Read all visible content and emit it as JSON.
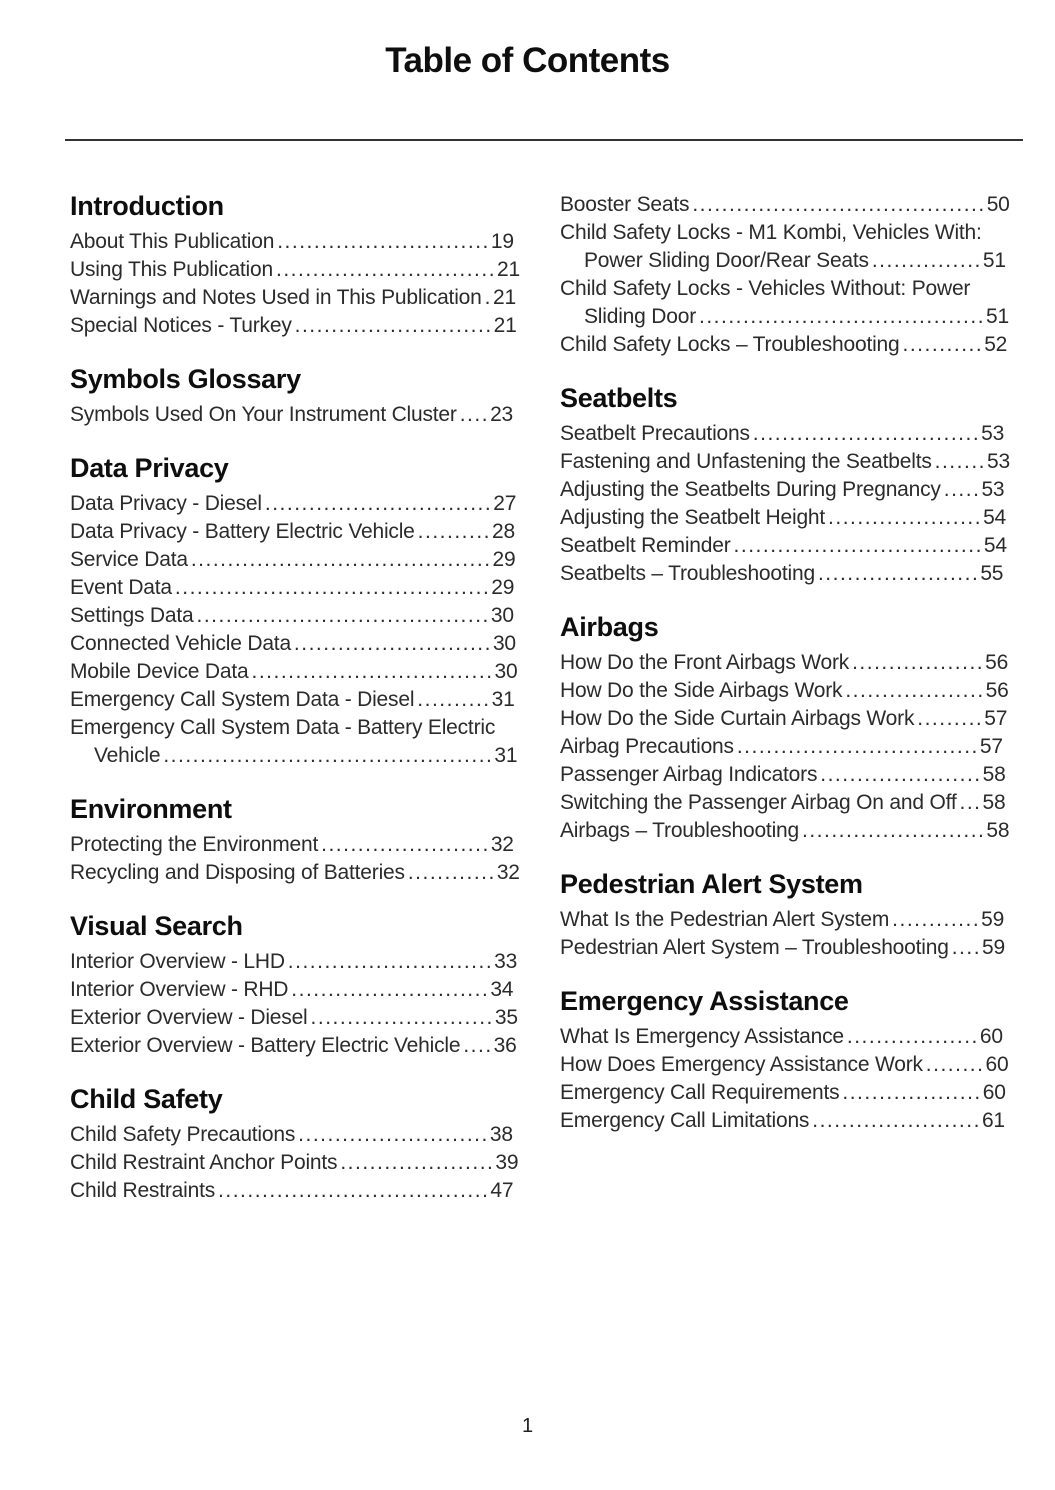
{
  "page": {
    "title": "Table of Contents",
    "page_number": "1"
  },
  "columns": [
    {
      "sections": [
        {
          "heading": "Introduction",
          "entries": [
            {
              "title": "About This Publication",
              "page": "19"
            },
            {
              "title": "Using This Publication",
              "page": "21"
            },
            {
              "title": "Warnings and Notes Used in This Publication",
              "page": "21"
            },
            {
              "title": "Special Notices - Turkey",
              "page": "21"
            }
          ]
        },
        {
          "heading": "Symbols Glossary",
          "entries": [
            {
              "title": "Symbols Used On Your Instrument Cluster",
              "page": "23"
            }
          ]
        },
        {
          "heading": "Data Privacy",
          "entries": [
            {
              "title": "Data Privacy - Diesel",
              "page": "27"
            },
            {
              "title": "Data Privacy - Battery Electric Vehicle",
              "page": "28"
            },
            {
              "title": "Service Data",
              "page": "29"
            },
            {
              "title": "Event Data",
              "page": "29"
            },
            {
              "title": "Settings Data",
              "page": "30"
            },
            {
              "title": "Connected Vehicle Data",
              "page": "30"
            },
            {
              "title": "Mobile Device Data",
              "page": "30"
            },
            {
              "title": "Emergency Call System Data - Diesel",
              "page": "31"
            },
            {
              "title": "Emergency Call System Data - Battery Electric Vehicle",
              "page": "31"
            }
          ]
        },
        {
          "heading": "Environment",
          "entries": [
            {
              "title": "Protecting the Environment",
              "page": "32"
            },
            {
              "title": "Recycling and Disposing of Batteries",
              "page": "32"
            }
          ]
        },
        {
          "heading": "Visual Search",
          "entries": [
            {
              "title": "Interior Overview - LHD",
              "page": "33"
            },
            {
              "title": "Interior Overview - RHD",
              "page": "34"
            },
            {
              "title": "Exterior Overview - Diesel",
              "page": "35"
            },
            {
              "title": "Exterior Overview - Battery Electric Vehicle",
              "page": "36"
            }
          ]
        },
        {
          "heading": "Child Safety",
          "entries": [
            {
              "title": "Child Safety Precautions",
              "page": "38"
            },
            {
              "title": "Child Restraint Anchor Points",
              "page": "39"
            },
            {
              "title": "Child Restraints",
              "page": "47"
            }
          ]
        }
      ]
    },
    {
      "sections": [
        {
          "heading": "",
          "entries": [
            {
              "title": "Booster Seats",
              "page": "50"
            },
            {
              "title": "Child Safety Locks - M1 Kombi, Vehicles With: Power Sliding Door/Rear Seats",
              "page": "51"
            },
            {
              "title": "Child Safety Locks - Vehicles Without: Power Sliding Door",
              "page": "51"
            },
            {
              "title": "Child Safety Locks – Troubleshooting",
              "page": "52"
            }
          ]
        },
        {
          "heading": "Seatbelts",
          "entries": [
            {
              "title": "Seatbelt Precautions",
              "page": "53"
            },
            {
              "title": "Fastening and Unfastening the Seatbelts",
              "page": "53"
            },
            {
              "title": "Adjusting the Seatbelts During Pregnancy",
              "page": "53"
            },
            {
              "title": "Adjusting the Seatbelt Height",
              "page": "54"
            },
            {
              "title": "Seatbelt Reminder",
              "page": "54"
            },
            {
              "title": "Seatbelts – Troubleshooting",
              "page": "55"
            }
          ]
        },
        {
          "heading": "Airbags",
          "entries": [
            {
              "title": "How Do the Front Airbags Work",
              "page": "56"
            },
            {
              "title": "How Do the Side Airbags Work",
              "page": "56"
            },
            {
              "title": "How Do the Side Curtain Airbags Work",
              "page": "57"
            },
            {
              "title": "Airbag Precautions",
              "page": "57"
            },
            {
              "title": "Passenger Airbag Indicators",
              "page": "58"
            },
            {
              "title": "Switching the Passenger Airbag On and Off",
              "page": "58"
            },
            {
              "title": "Airbags – Troubleshooting",
              "page": "58"
            }
          ]
        },
        {
          "heading": "Pedestrian Alert System",
          "entries": [
            {
              "title": "What Is the Pedestrian Alert System",
              "page": "59"
            },
            {
              "title": "Pedestrian Alert System – Troubleshooting",
              "page": "59"
            }
          ]
        },
        {
          "heading": "Emergency Assistance",
          "entries": [
            {
              "title": "What Is Emergency Assistance",
              "page": "60"
            },
            {
              "title": "How Does Emergency Assistance Work",
              "page": "60"
            },
            {
              "title": "Emergency Call Requirements",
              "page": "60"
            },
            {
              "title": "Emergency Call Limitations",
              "page": "61"
            }
          ]
        }
      ]
    }
  ]
}
